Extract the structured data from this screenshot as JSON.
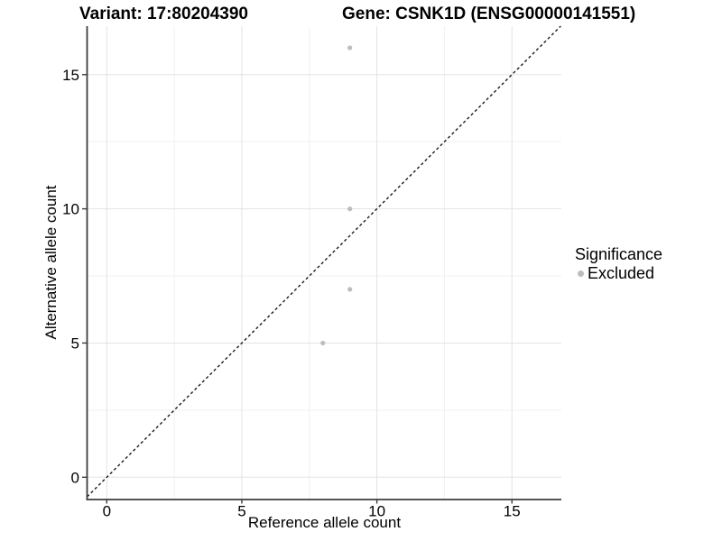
{
  "header": {
    "variant_title": "Variant: 17:80204390",
    "gene_title": "Gene: CSNK1D (ENSG00000141551)"
  },
  "chart_data": {
    "type": "scatter",
    "title": "Variant: 17:80204390 — Gene: CSNK1D (ENSG00000141551)",
    "xlabel": "Reference allele count",
    "ylabel": "Alternative allele count",
    "xlim": [
      -0.75,
      16.83
    ],
    "ylim": [
      -0.8,
      16.8
    ],
    "x_ticks": [
      0,
      5,
      10,
      15
    ],
    "y_ticks": [
      0,
      5,
      10,
      15
    ],
    "x_minor_gridlines": [
      2.5,
      7.5,
      12.5
    ],
    "y_minor_gridlines": [
      2.5,
      7.5,
      12.5
    ],
    "grid": "on",
    "identity_line": {
      "style": "dashed",
      "slope": 1,
      "intercept": 0,
      "color": "#1a1a1a"
    },
    "series": [
      {
        "name": "Excluded",
        "color": "#bdbdbd",
        "points": [
          {
            "x": 9,
            "y": 16
          },
          {
            "x": 9,
            "y": 10
          },
          {
            "x": 9,
            "y": 7
          },
          {
            "x": 8,
            "y": 5
          }
        ]
      }
    ],
    "legend": {
      "title": "Significance",
      "position": "right",
      "entries": [
        {
          "label": "Excluded",
          "color": "#bdbdbd"
        }
      ]
    },
    "colors": {
      "grid_major": "#e3e3e3",
      "grid_minor": "#f1f1f1",
      "axis_line": "#3c3c3c",
      "tick_text": "#000000",
      "point": "#bdbdbd"
    }
  }
}
